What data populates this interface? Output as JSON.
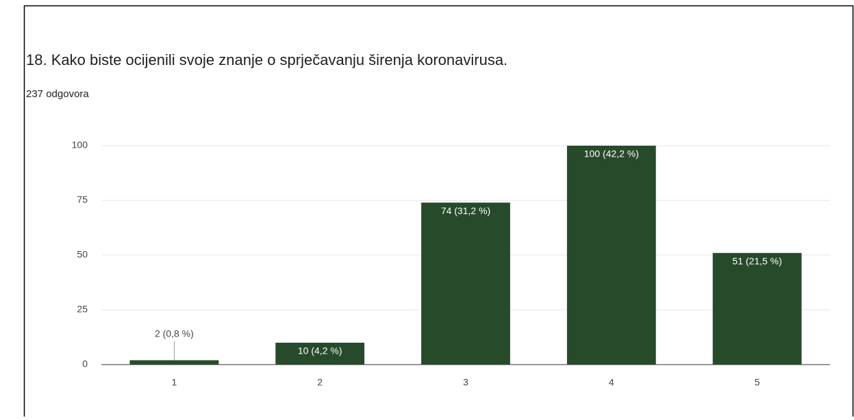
{
  "chart_data": {
    "type": "bar",
    "title": "18. Kako biste ocijenili svoje znanje o sprječavanju širenja koronavirusa.",
    "subtitle": "237 odgovora",
    "categories": [
      "1",
      "2",
      "3",
      "4",
      "5"
    ],
    "values": [
      2,
      10,
      74,
      100,
      51
    ],
    "value_labels": [
      "2 (0,8 %)",
      "10 (4,2 %)",
      "74 (31,2 %)",
      "100 (42,2 %)",
      "51 (21,5 %)"
    ],
    "color": "#274a2b",
    "ylim": [
      0,
      100
    ],
    "yticks": [
      0,
      25,
      50,
      75,
      100
    ],
    "grid": true
  }
}
